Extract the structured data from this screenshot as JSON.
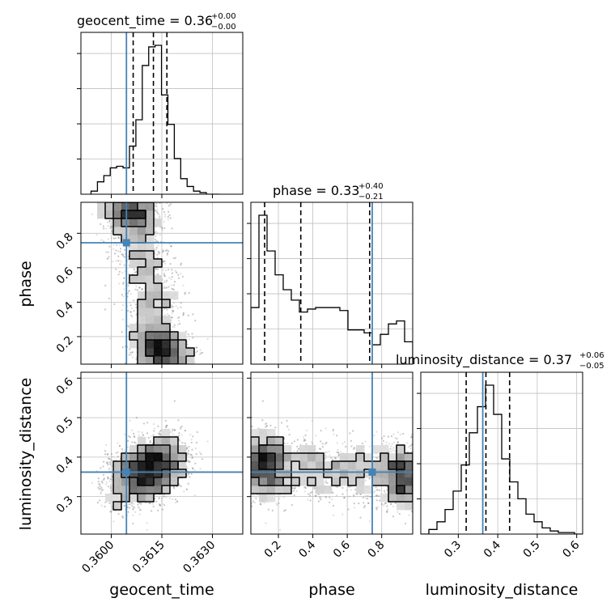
{
  "chart_data": {
    "type": "corner",
    "parameters": [
      "geocent_time",
      "phase",
      "luminosity_distance"
    ],
    "titles": [
      {
        "param": "geocent_time",
        "text": "geocent_time = 0.36",
        "plus": "+0.00",
        "minus": "−0.00"
      },
      {
        "param": "phase",
        "text": "phase = 0.33",
        "plus": "+0.40",
        "minus": "−0.21"
      },
      {
        "param": "luminosity_distance",
        "text": "luminosity_distance = 0.37",
        "plus": "+0.06",
        "minus": "−0.05"
      }
    ],
    "ranges": {
      "geocent_time": [
        0.3591,
        0.3639
      ],
      "phase": [
        0.04,
        0.98
      ],
      "luminosity_distance": [
        0.205,
        0.615
      ]
    },
    "ticks": {
      "geocent_time": {
        "values": [
          0.36,
          0.3615,
          0.363
        ],
        "labels": [
          "0.3600",
          "0.3615",
          "0.3630"
        ]
      },
      "phase": {
        "values": [
          0.2,
          0.4,
          0.6,
          0.8
        ],
        "labels": [
          "0.2",
          "0.4",
          "0.6",
          "0.8"
        ]
      },
      "luminosity_distance": {
        "values": [
          0.3,
          0.4,
          0.5,
          0.6
        ],
        "labels": [
          "0.3",
          "0.4",
          "0.5",
          "0.6"
        ]
      }
    },
    "injection": {
      "geocent_time": 0.36045,
      "phase": 0.745,
      "luminosity_distance": 0.362
    },
    "quantiles": {
      "geocent_time": [
        0.36065,
        0.36125,
        0.36165
      ],
      "phase": [
        0.12,
        0.33,
        0.73
      ],
      "luminosity_distance": [
        0.32,
        0.37,
        0.43
      ]
    },
    "histograms": {
      "geocent_time": {
        "edges": [
          0.3594,
          0.35959,
          0.35978,
          0.35997,
          0.36016,
          0.36035,
          0.36054,
          0.36073,
          0.36092,
          0.36111,
          0.3613,
          0.36149,
          0.36168,
          0.36187,
          0.36206,
          0.36225,
          0.36244,
          0.36263,
          0.36282,
          0.36301,
          0.3632
        ],
        "counts": [
          2,
          8,
          12,
          17,
          18,
          17,
          31,
          48,
          83,
          95,
          96,
          64,
          45,
          23,
          10,
          5,
          2,
          1,
          0,
          0
        ]
      },
      "phase": {
        "edges": [
          0.04,
          0.087,
          0.134,
          0.181,
          0.228,
          0.275,
          0.322,
          0.369,
          0.416,
          0.463,
          0.51,
          0.557,
          0.604,
          0.651,
          0.698,
          0.745,
          0.792,
          0.839,
          0.886,
          0.933,
          0.98
        ],
        "counts": [
          38,
          100,
          76,
          60,
          50,
          43,
          35,
          37,
          38,
          38,
          38,
          36,
          23,
          23,
          21,
          13,
          20,
          27,
          29,
          15
        ]
      },
      "luminosity_distance": {
        "edges": [
          0.205,
          0.2255,
          0.246,
          0.2665,
          0.287,
          0.3075,
          0.328,
          0.3485,
          0.369,
          0.3895,
          0.41,
          0.4305,
          0.451,
          0.4715,
          0.492,
          0.5125,
          0.533,
          0.5535,
          0.574,
          0.5945,
          0.615
        ],
        "counts": [
          0,
          3,
          8,
          16,
          28,
          45,
          66,
          83,
          97,
          78,
          49,
          34,
          23,
          13,
          8,
          4,
          2,
          1,
          1,
          0
        ]
      }
    },
    "grid": true,
    "colors": {
      "truth": "#4682b4",
      "line": "#000000",
      "grid": "#c0c0c0",
      "scatter": "#8c8c8c"
    }
  }
}
